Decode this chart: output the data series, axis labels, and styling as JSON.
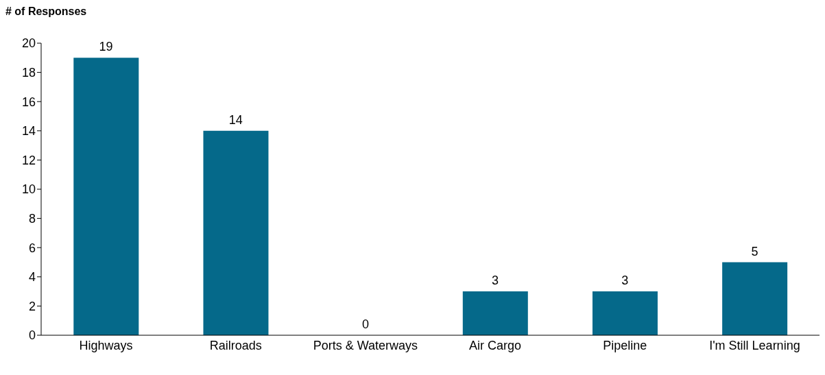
{
  "chart_data": {
    "type": "bar",
    "ylabel": "# of Responses",
    "categories": [
      "Highways",
      "Railroads",
      "Ports & Waterways",
      "Air Cargo",
      "Pipeline",
      "I'm Still Learning"
    ],
    "values": [
      19,
      14,
      0,
      3,
      3,
      5
    ],
    "color": "#05698a",
    "ylim": [
      0,
      20
    ],
    "yticks": [
      0,
      2,
      4,
      6,
      8,
      10,
      12,
      14,
      16,
      18,
      20
    ],
    "grid": false,
    "legend": false,
    "data_labels": true
  }
}
